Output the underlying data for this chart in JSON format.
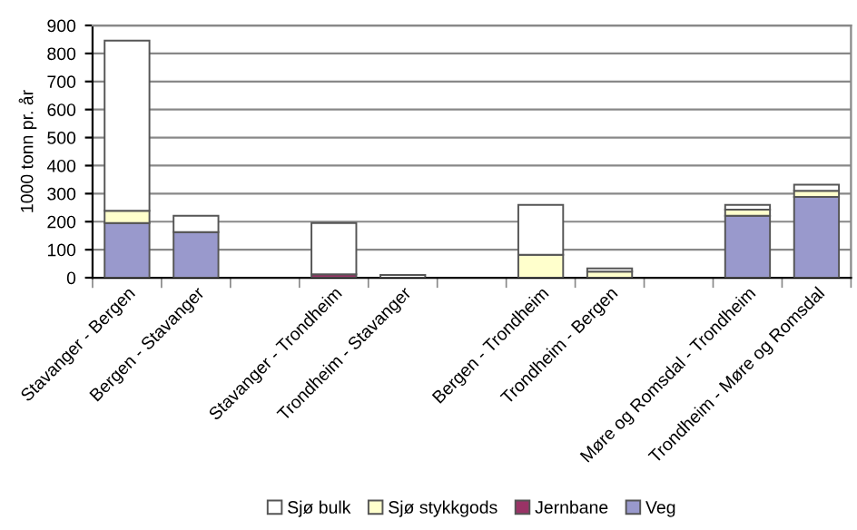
{
  "chart_data": {
    "type": "bar",
    "stacked": true,
    "ylabel": "1000 tonn pr. år",
    "categories": [
      "Stavanger - Bergen",
      "Bergen - Stavanger",
      null,
      "Stavanger - Trondheim",
      "Trondheim - Stavanger",
      null,
      "Bergen - Trondheim",
      "Trondheim - Bergen",
      null,
      "Møre og Romsdal - Trondheim",
      "Trondheim - Møre og Romsdal"
    ],
    "series": [
      {
        "name": "Veg",
        "color": "#9999cc",
        "values": [
          195,
          163,
          null,
          0,
          0,
          null,
          null,
          null,
          null,
          221,
          288
        ]
      },
      {
        "name": "Jernbane",
        "color": "#993366",
        "values": [
          0,
          0,
          null,
          12,
          0,
          null,
          0,
          0,
          null,
          0,
          0
        ]
      },
      {
        "name": "Sjø stykkgods",
        "color": "#ffffcc",
        "values": [
          44,
          0,
          null,
          null,
          0,
          null,
          82,
          22,
          null,
          22,
          22
        ]
      },
      {
        "name": "Sjø bulk",
        "color": "#ffffff",
        "values": [
          607,
          58,
          null,
          183,
          10,
          null,
          178,
          11,
          null,
          17,
          22
        ]
      }
    ],
    "ylim": [
      0,
      900
    ],
    "yticks": [
      0,
      100,
      200,
      300,
      400,
      500,
      600,
      700,
      800,
      900
    ],
    "grid": "y",
    "legend": "bottom"
  }
}
